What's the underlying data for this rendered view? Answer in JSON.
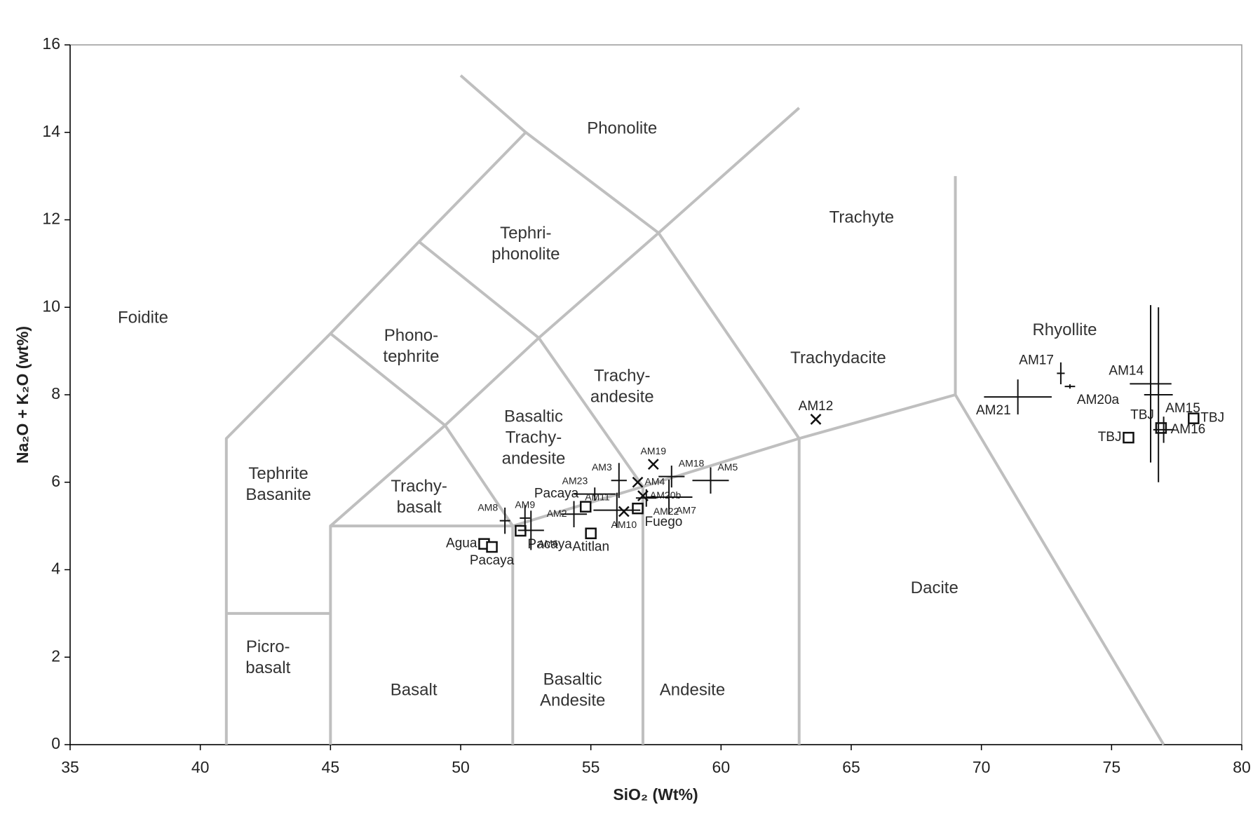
{
  "chart_data": {
    "type": "tas",
    "x_label": "SiO₂ (Wt%)",
    "y_label": "Na₂O + K₂O (wt%)",
    "xlim": [
      35,
      80
    ],
    "ylim": [
      0,
      16
    ],
    "xticks": [
      35,
      40,
      45,
      50,
      55,
      60,
      65,
      70,
      75,
      80
    ],
    "yticks": [
      0,
      2,
      4,
      6,
      8,
      10,
      12,
      14,
      16
    ],
    "boundary_color": "#bfbfbf",
    "marker_color": "#111111",
    "boundaries": [
      {
        "x": [
          41,
          41,
          45,
          48.4,
          52.5
        ],
        "y": [
          0,
          7,
          9.4,
          11.5,
          14
        ]
      },
      {
        "x": [
          50,
          52.5,
          57.6
        ],
        "y": [
          15.3,
          14,
          11.7
        ]
      },
      {
        "x": [
          41,
          45
        ],
        "y": [
          3,
          3
        ]
      },
      {
        "x": [
          45,
          45,
          52,
          57,
          63,
          69
        ],
        "y": [
          0,
          5,
          5,
          5.9,
          7,
          8
        ]
      },
      {
        "x": [
          52,
          52
        ],
        "y": [
          0,
          5
        ]
      },
      {
        "x": [
          57,
          57
        ],
        "y": [
          0,
          5.9
        ]
      },
      {
        "x": [
          63,
          63
        ],
        "y": [
          0,
          7
        ]
      },
      {
        "x": [
          69,
          69
        ],
        "y": [
          8,
          13
        ]
      },
      {
        "x": [
          69,
          77
        ],
        "y": [
          8,
          0
        ]
      },
      {
        "x": [
          45,
          49.4,
          52
        ],
        "y": [
          9.4,
          7.3,
          5
        ]
      },
      {
        "x": [
          45,
          49.4,
          53,
          57.6,
          63
        ],
        "y": [
          5,
          7.3,
          9.3,
          11.7,
          14.56
        ]
      },
      {
        "x": [
          48.4,
          53,
          57
        ],
        "y": [
          11.5,
          9.3,
          5.9
        ]
      },
      {
        "x": [
          57.6,
          63
        ],
        "y": [
          11.7,
          7
        ]
      }
    ],
    "fields": [
      {
        "lines": [
          "Foidite"
        ],
        "x": 37.8,
        "y": 9.74
      },
      {
        "lines": [
          "Phonolite"
        ],
        "x": 56.2,
        "y": 14.07
      },
      {
        "lines": [
          "Tephri-",
          "phonolite"
        ],
        "x": 52.5,
        "y": 11.43
      },
      {
        "lines": [
          "Trachyte"
        ],
        "x": 65.4,
        "y": 12.03
      },
      {
        "lines": [
          "Phono-",
          "tephrite"
        ],
        "x": 48.1,
        "y": 9.09
      },
      {
        "lines": [
          "Trachy-",
          "andesite"
        ],
        "x": 56.2,
        "y": 8.17
      },
      {
        "lines": [
          "Trachydacite"
        ],
        "x": 64.5,
        "y": 8.82
      },
      {
        "lines": [
          "Rhyollite"
        ],
        "x": 73.2,
        "y": 9.46
      },
      {
        "lines": [
          "Basaltic",
          "Trachy-",
          "andesite"
        ],
        "x": 52.8,
        "y": 7.0
      },
      {
        "lines": [
          "Tephrite",
          "Basanite"
        ],
        "x": 43.0,
        "y": 5.93
      },
      {
        "lines": [
          "Trachy-",
          "basalt"
        ],
        "x": 48.4,
        "y": 5.64
      },
      {
        "lines": [
          "Dacite"
        ],
        "x": 68.2,
        "y": 3.56
      },
      {
        "lines": [
          "Picro-",
          "basalt"
        ],
        "x": 42.6,
        "y": 1.97
      },
      {
        "lines": [
          "Basalt"
        ],
        "x": 48.2,
        "y": 1.23
      },
      {
        "lines": [
          "Basaltic",
          "Andesite"
        ],
        "x": 54.3,
        "y": 1.23
      },
      {
        "lines": [
          "Andesite"
        ],
        "x": 58.9,
        "y": 1.23
      }
    ],
    "samples": [
      {
        "name": "Agua",
        "marker": "square",
        "x": 50.9,
        "y": 4.59,
        "label_pos": "left"
      },
      {
        "name": "Pacaya",
        "marker": "square",
        "x": 51.2,
        "y": 4.52,
        "label_pos": "below"
      },
      {
        "name": "Pacaya",
        "marker": "square",
        "x": 52.3,
        "y": 4.89,
        "label_pos": "below-right"
      },
      {
        "name": "Atitlan",
        "marker": "square",
        "x": 55.0,
        "y": 4.83,
        "label_pos": "below"
      },
      {
        "name": "Pacaya",
        "marker": "square",
        "x": 54.8,
        "y": 5.44,
        "label_pos": "above-left"
      },
      {
        "name": "Fuego",
        "marker": "square",
        "x": 56.8,
        "y": 5.4,
        "label_pos": "below-right"
      },
      {
        "name": "TBJ",
        "marker": "square",
        "x": 75.65,
        "y": 7.02,
        "label_pos": "left"
      },
      {
        "name": "TBJ",
        "marker": "square",
        "x": 76.9,
        "y": 7.24,
        "label_pos": "above-left"
      },
      {
        "name": "TBJ",
        "marker": "square",
        "x": 78.15,
        "y": 7.46,
        "label_pos": "right"
      },
      {
        "name": "AM12",
        "marker": "x",
        "x": 63.64,
        "y": 7.44,
        "label_pos": "above"
      },
      {
        "name": "AM19",
        "marker": "x",
        "x": 57.4,
        "y": 6.41,
        "label_pos": "above"
      },
      {
        "name": "AM4",
        "marker": "x",
        "x": 56.8,
        "y": 6.0,
        "label_pos": "right"
      },
      {
        "name": "AM20b",
        "marker": "x",
        "x": 57.0,
        "y": 5.69,
        "label_pos": "right"
      },
      {
        "name": "AM10",
        "marker": "x",
        "x": 56.27,
        "y": 5.33,
        "label_pos": "below"
      },
      {
        "name": "AM8",
        "marker": "plus",
        "x": 51.7,
        "y": 5.12,
        "xerr": 0.2,
        "yerr": 0.3,
        "label_pos": "above-left"
      },
      {
        "name": "AM9",
        "marker": "plus",
        "x": 52.47,
        "y": 5.18,
        "xerr": 0.2,
        "yerr": 0.3,
        "label_pos": "above"
      },
      {
        "name": "AM6",
        "marker": "plus",
        "x": 52.7,
        "y": 4.9,
        "xerr": 0.5,
        "yerr": 0.45,
        "label_pos": "below-right"
      },
      {
        "name": "AM2",
        "marker": "plus",
        "x": 54.35,
        "y": 5.27,
        "xerr": 0.5,
        "yerr": 0.3,
        "label_pos": "left"
      },
      {
        "name": "AM23",
        "marker": "plus",
        "x": 55.15,
        "y": 5.73,
        "xerr": 0.8,
        "yerr": 0.15,
        "label_pos": "above-left"
      },
      {
        "name": "AM3",
        "marker": "plus",
        "x": 56.08,
        "y": 6.04,
        "xerr": 0.3,
        "yerr": 0.4,
        "label_pos": "above-left"
      },
      {
        "name": "AM11",
        "marker": "plus",
        "x": 56.0,
        "y": 5.36,
        "xerr": 0.9,
        "yerr": 0.4,
        "label_pos": "above-left"
      },
      {
        "name": "AM18",
        "marker": "plus",
        "x": 58.1,
        "y": 6.13,
        "xerr": 0.5,
        "yerr": 0.25,
        "label_pos": "above-right"
      },
      {
        "name": "AM5",
        "marker": "plus",
        "x": 59.6,
        "y": 6.04,
        "xerr": 0.7,
        "yerr": 0.3,
        "label_pos": "above-right"
      },
      {
        "name": "AM22",
        "marker": "plus",
        "x": 57.13,
        "y": 5.64,
        "xerr": 0.4,
        "yerr": 0.2,
        "label_pos": "below-right"
      },
      {
        "name": "AM7",
        "marker": "plus",
        "x": 58.0,
        "y": 5.66,
        "xerr": 0.9,
        "yerr": 0.4,
        "label_pos": "below-right"
      },
      {
        "name": "AM17",
        "marker": "plus",
        "x": 73.05,
        "y": 8.49,
        "xerr": 0.15,
        "yerr": 0.25,
        "label_pos": "above-left"
      },
      {
        "name": "AM20a",
        "marker": "plus",
        "x": 73.4,
        "y": 8.19,
        "xerr": 0.2,
        "yerr": 0.05,
        "label_pos": "below-right"
      },
      {
        "name": "AM21",
        "marker": "plus",
        "x": 71.4,
        "y": 7.95,
        "xerr": 1.3,
        "yerr": 0.4,
        "label_pos": "below-left"
      },
      {
        "name": "AM14",
        "marker": "plus",
        "x": 76.5,
        "y": 8.25,
        "xerr": 0.8,
        "yerr": 1.8,
        "label_pos": "above-left"
      },
      {
        "name": "AM15",
        "marker": "plus",
        "x": 76.8,
        "y": 8.0,
        "xerr": 0.55,
        "yerr": 2.0,
        "label_pos": "below-right"
      },
      {
        "name": "AM16",
        "marker": "plus",
        "x": 77.0,
        "y": 7.2,
        "xerr": 0.4,
        "yerr": 0.3,
        "label_pos": "right"
      }
    ]
  }
}
